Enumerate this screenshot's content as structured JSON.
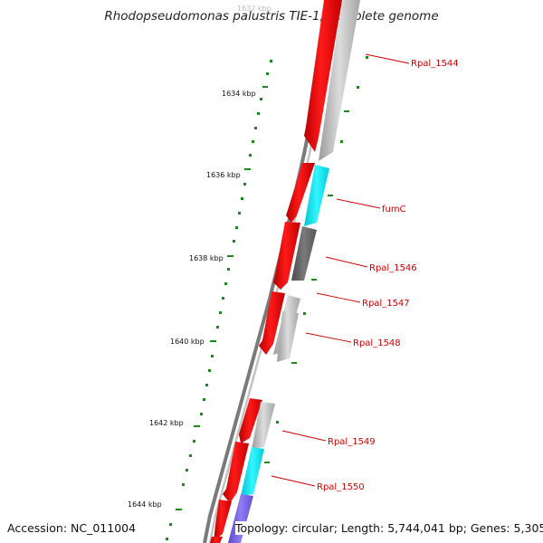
{
  "title": "Rhodopseudomonas palustris TIE-1, complete genome",
  "footer": {
    "accession": "Accession: NC_011004",
    "topology": "Topology: circular; Length: 5,744,041 bp; Genes: 5,305"
  },
  "kbp_labels": [
    "1632 kbp",
    "1634 kbp",
    "1636 kbp",
    "1638 kbp",
    "1640 kbp",
    "1642 kbp",
    "1644 kbp"
  ],
  "genes": [
    {
      "label": "Rpal_1544",
      "color": "#bdbdbd"
    },
    {
      "label": "fumC",
      "color": "#00e5f0"
    },
    {
      "label": "Rpal_1546",
      "color": "#6a6a6a"
    },
    {
      "label": "Rpal_1547",
      "color": "#c8c8c8"
    },
    {
      "label": "Rpal_1548",
      "color": "#c8c8c8"
    },
    {
      "label": "Rpal_1549",
      "color": "#c8c8c8"
    },
    {
      "label": "Rpal_1550",
      "color": "#00e5f0"
    }
  ],
  "colors": {
    "cds": "#ff0000",
    "backbone": "#8a8a8a",
    "tick": "#1a8a1a",
    "label_line": "#cc0000",
    "slate": "#7b68ee"
  }
}
